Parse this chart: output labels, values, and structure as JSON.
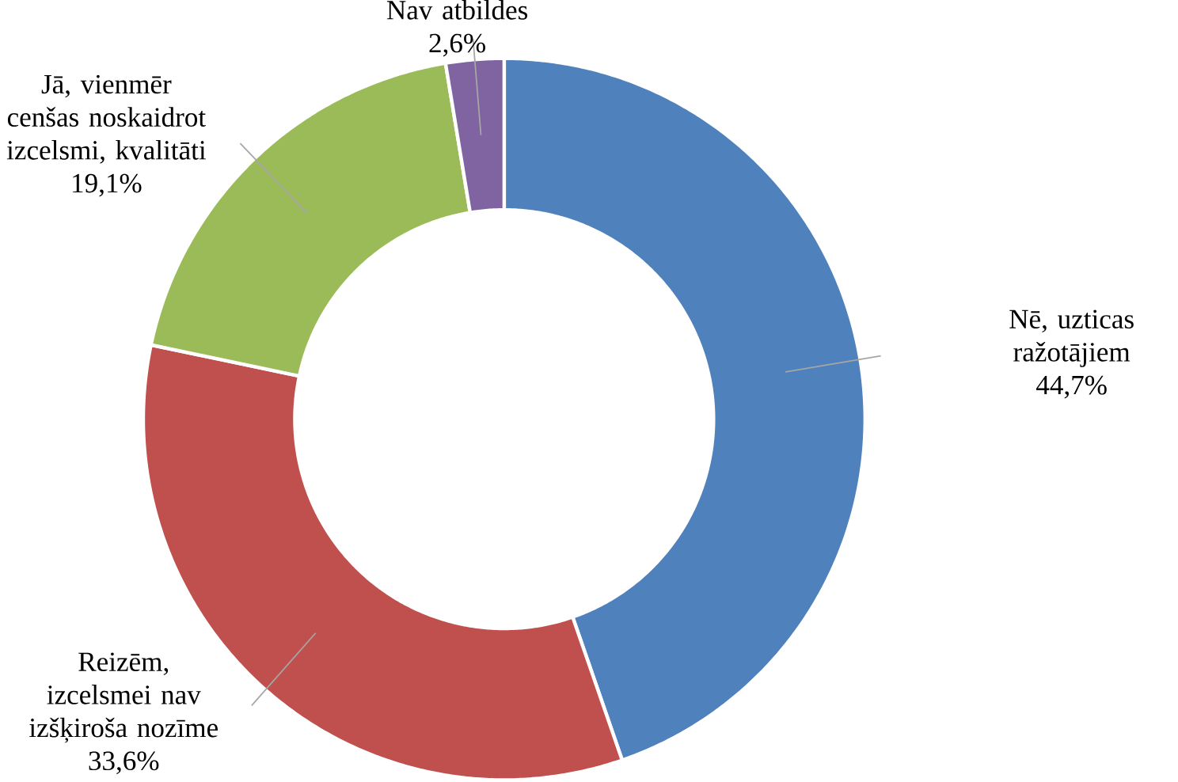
{
  "chart_data": {
    "type": "donut",
    "categories": [
      "Nē, uzticas ražotājiem",
      "Reizēm, izcelsmei nav izšķiroša nozīme",
      "Jā, vienmēr cenšas noskaidrot izcelsmi, kvalitāti",
      "Nav atbildes"
    ],
    "values": [
      44.7,
      33.6,
      19.1,
      2.6
    ],
    "value_labels": [
      "44,7%",
      "33,6%",
      "19,1%",
      "2,6%"
    ],
    "colors": [
      "#4f81bd",
      "#c0504d",
      "#9bbb59",
      "#8064a2"
    ]
  }
}
